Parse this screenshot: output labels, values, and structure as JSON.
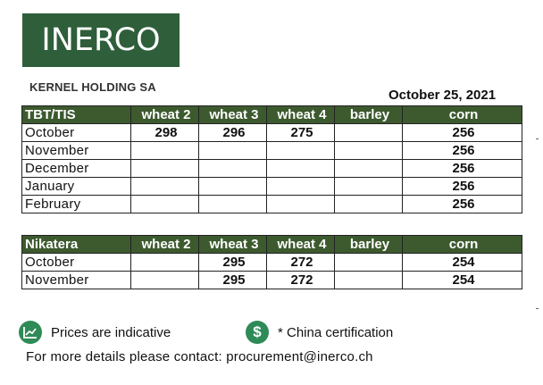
{
  "logo": {
    "text": "INERCO"
  },
  "company": "KERNEL HOLDING SA",
  "date": "October 25, 2021",
  "tables": [
    {
      "headers": [
        "TBT/TIS",
        "wheat 2",
        "wheat 3",
        "wheat 4",
        "barley",
        "corn"
      ],
      "rows": [
        [
          "October",
          "298",
          "296",
          "275",
          "",
          "256"
        ],
        [
          "November",
          "",
          "",
          "",
          "",
          "256"
        ],
        [
          "December",
          "",
          "",
          "",
          "",
          "256"
        ],
        [
          "January",
          "",
          "",
          "",
          "",
          "256"
        ],
        [
          "February",
          "",
          "",
          "",
          "",
          "256"
        ]
      ]
    },
    {
      "headers": [
        "Nikatera",
        "wheat 2",
        "wheat 3",
        "wheat 4",
        "barley",
        "corn"
      ],
      "rows": [
        [
          "October",
          "",
          "295",
          "272",
          "",
          "254"
        ],
        [
          "November",
          "",
          "295",
          "272",
          "",
          "254"
        ]
      ]
    }
  ],
  "legend": {
    "indicative": {
      "icon": "chart-line-icon",
      "text": "Prices are indicative",
      "color": "#2e8b57"
    },
    "china": {
      "icon": "dollar-icon",
      "symbol": "$",
      "text": "* China certification",
      "color": "#2e8b57"
    }
  },
  "contact": "For more details please contact: procurement@inerco.ch"
}
